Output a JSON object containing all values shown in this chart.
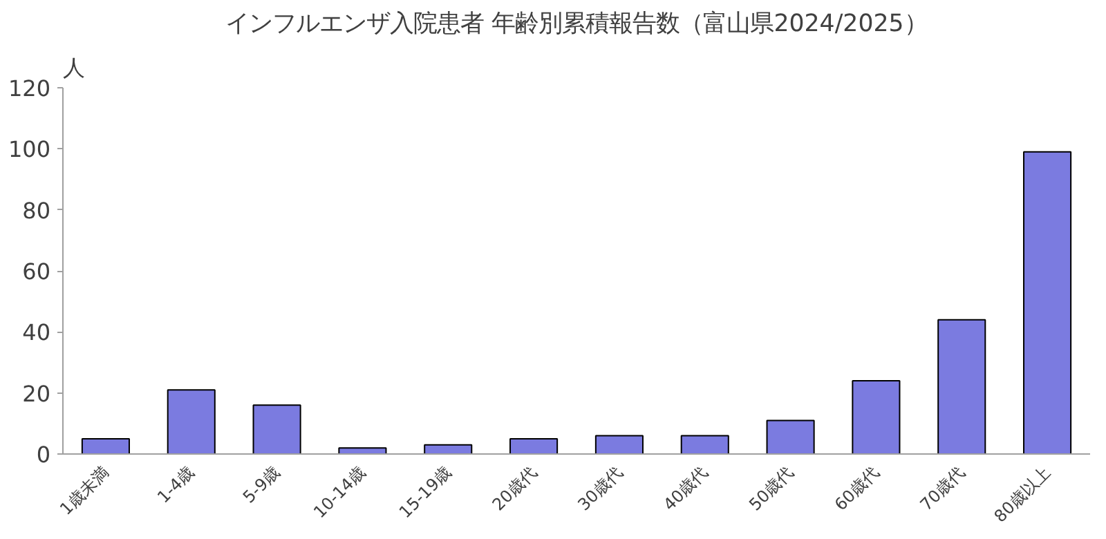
{
  "chart_data": {
    "type": "bar",
    "title": "インフルエンザ入院患者 年齢別累積報告数（富山県2024/2025）",
    "ylabel": "人",
    "categories": [
      "1歳未満",
      "1-4歳",
      "5-9歳",
      "10-14歳",
      "15-19歳",
      "20歳代",
      "30歳代",
      "40歳代",
      "50歳代",
      "60歳代",
      "70歳代",
      "80歳以上"
    ],
    "values": [
      5,
      21,
      16,
      2,
      3,
      5,
      6,
      6,
      11,
      24,
      44,
      99
    ],
    "color": "#7b7be0",
    "ylim": [
      0,
      120
    ],
    "yticks": [
      0,
      20,
      40,
      60,
      80,
      100,
      120
    ],
    "grid": false
  }
}
